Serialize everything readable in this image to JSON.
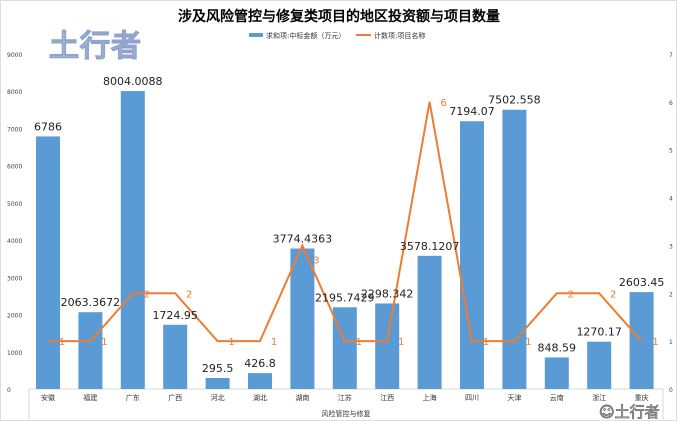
{
  "watermark": "土行者",
  "chart_data": {
    "type": "bar+line",
    "title": "涉及风险管控与修复类项目的地区投资额与项目数量",
    "xlabel": "风险管控与修复",
    "categories": [
      "安徽",
      "福建",
      "广东",
      "广西",
      "河北",
      "湖北",
      "湖南",
      "江苏",
      "江西",
      "上海",
      "四川",
      "天津",
      "云南",
      "浙江",
      "重庆"
    ],
    "series": [
      {
        "name": "求和项:中标金额（万元）",
        "type": "bar",
        "axis": "left",
        "color": "#5b9bd5",
        "values": [
          6786,
          2063.3672,
          8004.0088,
          1724.95,
          295.5,
          426.8,
          3774.4363,
          2195.7429,
          2298.342,
          3578.1207,
          7194.07,
          7502.558,
          848.59,
          1270.17,
          2603.45
        ]
      },
      {
        "name": "计数项:项目名称",
        "type": "line",
        "axis": "right",
        "color": "#ed7d31",
        "values": [
          1,
          1,
          2,
          2,
          1,
          1,
          3,
          1,
          1,
          6,
          1,
          1,
          2,
          2,
          1
        ]
      }
    ],
    "ylim_left": [
      0,
      9000
    ],
    "yticks_left": [
      0,
      1000,
      2000,
      3000,
      4000,
      5000,
      6000,
      7000,
      8000,
      9000
    ],
    "ylim_right": [
      0,
      7
    ],
    "yticks_right": [
      0,
      1,
      2,
      3,
      4,
      5,
      6,
      7
    ],
    "grid": false,
    "legend": "top"
  }
}
